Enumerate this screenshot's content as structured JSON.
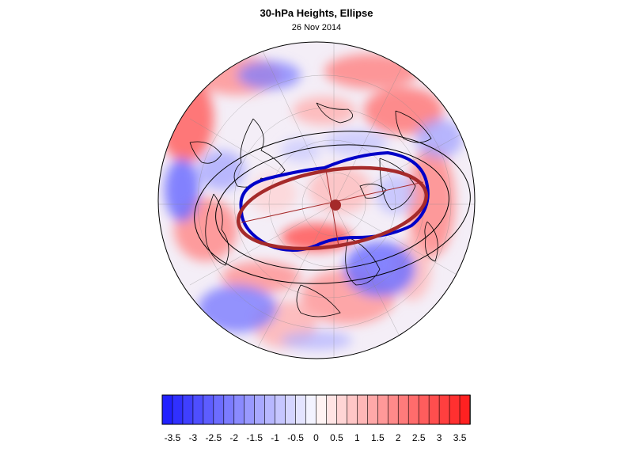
{
  "figure": {
    "title": "30-hPa Heights, Ellipse",
    "subtitle": "26 Nov 2014"
  },
  "colors": {
    "negative_max": "#1a1aff",
    "positive_max": "#ff1a1a",
    "ellipse_fit": "#a52a2a",
    "vortex_edge": "#0000c8",
    "contour": "#000000"
  },
  "colorbar": {
    "levels": [
      -3.75,
      -3.5,
      -3.25,
      -3,
      -2.75,
      -2.5,
      -2.25,
      -2,
      -1.75,
      -1.5,
      -1.25,
      -1,
      -0.75,
      -0.5,
      -0.25,
      0,
      0.25,
      0.5,
      0.75,
      1,
      1.25,
      1.5,
      1.75,
      2,
      2.25,
      2.5,
      2.75,
      3,
      3.25,
      3.5,
      3.75
    ],
    "tick_labels": [
      "-3.5",
      "-3",
      "-2.5",
      "-2",
      "-1.5",
      "-1",
      "-0.5",
      "0",
      "0.5",
      "1",
      "1.5",
      "2",
      "2.5",
      "3",
      "3.5"
    ]
  }
}
